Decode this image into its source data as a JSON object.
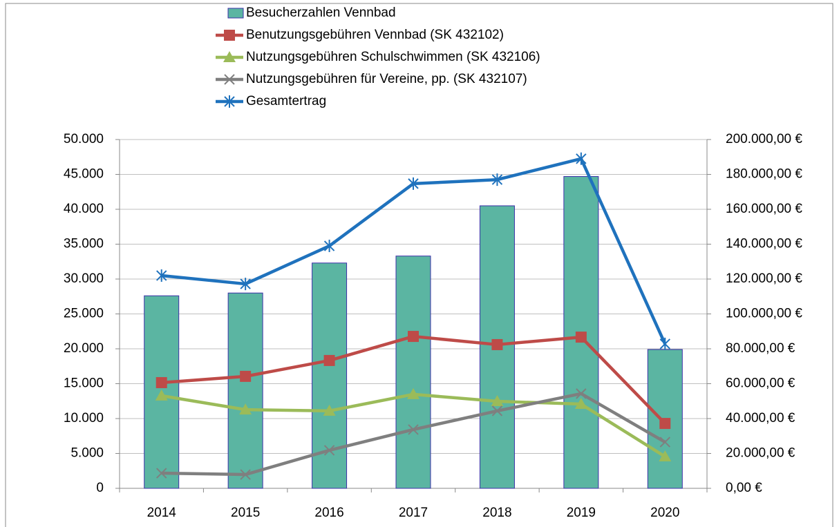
{
  "chart_data": {
    "type": "bar-line",
    "categories": [
      "2014",
      "2015",
      "2016",
      "2017",
      "2018",
      "2019",
      "2020"
    ],
    "series": [
      {
        "name": "Besucherzahlen Vennbad",
        "type": "bar",
        "color": "#5bb5a2",
        "values": [
          27600,
          28000,
          32300,
          33300,
          40500,
          44700,
          19900
        ]
      },
      {
        "name": "Benutzungsgebühren Vennbad (SK 432102)",
        "type": "line",
        "axis": "y2",
        "marker": "square",
        "color": "#be4b48",
        "values": [
          60600,
          64200,
          73300,
          87100,
          82400,
          86700,
          37200
        ]
      },
      {
        "name": "Nutzungsgebühren Schulschwimmen (SK 432106)",
        "type": "line",
        "axis": "y2",
        "marker": "triangle",
        "color": "#9bbb59",
        "values": [
          53100,
          45100,
          44400,
          53900,
          49900,
          48300,
          18200
        ]
      },
      {
        "name": "Nutzungsgebühren für Vereine, pp. (SK 432107)",
        "type": "line",
        "axis": "y2",
        "marker": "x",
        "color": "#7f7f7f",
        "values": [
          8700,
          7900,
          21800,
          33700,
          44400,
          54300,
          26500
        ]
      },
      {
        "name": "Gesamtertrag",
        "type": "line",
        "axis": "y2",
        "marker": "star",
        "color": "#1f72bd",
        "values": [
          122000,
          117200,
          139000,
          174700,
          177000,
          189000,
          82800
        ]
      }
    ],
    "ylim": [
      0,
      50000
    ],
    "yticks": [
      0,
      {
        "value": 5000,
        "label": "5.000"
      },
      {
        "value": 10000,
        "label": "10.000"
      },
      {
        "value": 15000,
        "label": "15.000"
      },
      {
        "value": 20000,
        "label": "20.000"
      },
      {
        "value": 25000,
        "label": "25.000"
      },
      {
        "value": 30000,
        "label": "30.000"
      },
      {
        "value": 35000,
        "label": "35.000"
      },
      {
        "value": 40000,
        "label": "40.000"
      },
      {
        "value": 45000,
        "label": "45.000"
      },
      {
        "value": 50000,
        "label": "50.000"
      }
    ],
    "y2lim": [
      0,
      200000
    ],
    "y2ticks": [
      {
        "value": 0,
        "label": "0,00 €"
      },
      {
        "value": 20000,
        "label": "20.000,00 €"
      },
      {
        "value": 40000,
        "label": "40.000,00 €"
      },
      {
        "value": 60000,
        "label": "60.000,00 €"
      },
      {
        "value": 80000,
        "label": "80.000,00 €"
      },
      {
        "value": 100000,
        "label": "100.000,00 €"
      },
      {
        "value": 120000,
        "label": "120.000,00 €"
      },
      {
        "value": 140000,
        "label": "140.000,00 €"
      },
      {
        "value": 160000,
        "label": "160.000,00 €"
      },
      {
        "value": 180000,
        "label": "180.000,00 €"
      },
      {
        "value": 200000,
        "label": "200.000,00 €"
      }
    ],
    "grid": true,
    "legend": "top"
  }
}
